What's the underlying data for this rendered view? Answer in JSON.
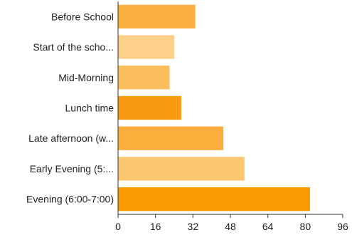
{
  "chart_data": {
    "type": "bar",
    "orientation": "horizontal",
    "title": "",
    "xlabel": "",
    "ylabel": "",
    "categories": [
      "Before School",
      "Start of the scho...",
      "Mid-Morning",
      "Lunch time",
      "Late afternoon (w...",
      "Early Evening (5:...",
      "Evening (6:00-7:00)"
    ],
    "values": [
      33,
      24,
      22,
      27,
      45,
      54,
      82
    ],
    "colors": [
      "#FBB040",
      "#FDD08A",
      "#FBBD5C",
      "#F99A10",
      "#FBAE3C",
      "#FCC670",
      "#F99A00"
    ],
    "xlim": [
      0,
      96
    ],
    "xticks": [
      "0",
      "16",
      "32",
      "48",
      "64",
      "80",
      "96"
    ],
    "grid": false,
    "legend": "none"
  }
}
